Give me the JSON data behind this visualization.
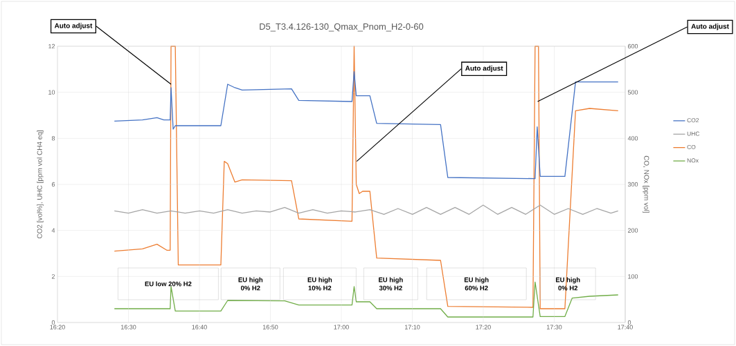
{
  "chart_data": {
    "type": "line",
    "title": "D5_T3.4.126-130_Qmax_Pnom_H2-0-60",
    "ylabel": "CO2  [vol%],  UHC  [ppm vol CH4 eq]",
    "y2label": "CO,  NOx  [ppm vol]",
    "xlim": [
      16.3333,
      17.6667
    ],
    "xticks": [
      {
        "value": 16.3333,
        "label": "16:20"
      },
      {
        "value": 16.5,
        "label": "16:30"
      },
      {
        "value": 16.6667,
        "label": "16:40"
      },
      {
        "value": 16.8333,
        "label": "16:50"
      },
      {
        "value": 17.0,
        "label": "17:00"
      },
      {
        "value": 17.1667,
        "label": "17:10"
      },
      {
        "value": 17.3333,
        "label": "17:20"
      },
      {
        "value": 17.5,
        "label": "17:30"
      },
      {
        "value": 17.6667,
        "label": "17:40"
      }
    ],
    "ylim": [
      0,
      12
    ],
    "yticks": [
      0,
      2,
      4,
      6,
      8,
      10,
      12
    ],
    "y2lim": [
      0,
      600
    ],
    "y2ticks": [
      0,
      100,
      200,
      300,
      400,
      500,
      600
    ],
    "grid": true,
    "legend": "right",
    "marker": "none",
    "series": [
      {
        "name": "CO2",
        "color": "#4472c4",
        "x": [
          16.467,
          16.533,
          16.567,
          16.583,
          16.598,
          16.6,
          16.605,
          16.61,
          16.717,
          16.733,
          16.75,
          16.767,
          16.883,
          16.9,
          17.025,
          17.03,
          17.035,
          17.067,
          17.083,
          17.233,
          17.25,
          17.455,
          17.46,
          17.467,
          17.525,
          17.55,
          17.65
        ],
        "values": [
          8.75,
          8.8,
          8.9,
          8.8,
          8.8,
          10.2,
          8.4,
          8.55,
          8.55,
          10.35,
          10.2,
          10.1,
          10.15,
          9.65,
          9.6,
          10.9,
          9.85,
          9.85,
          8.65,
          8.6,
          6.3,
          6.25,
          8.5,
          6.35,
          6.35,
          10.45,
          10.45
        ]
      },
      {
        "name": "UHC",
        "color": "#a5a5a5",
        "x": [
          16.467,
          16.5,
          16.533,
          16.567,
          16.6,
          16.633,
          16.667,
          16.7,
          16.733,
          16.767,
          16.8,
          16.833,
          16.867,
          16.9,
          16.933,
          16.967,
          17.0,
          17.033,
          17.067,
          17.1,
          17.133,
          17.167,
          17.2,
          17.233,
          17.267,
          17.3,
          17.333,
          17.367,
          17.4,
          17.433,
          17.467,
          17.5,
          17.533,
          17.567,
          17.6,
          17.633,
          17.65
        ],
        "values": [
          4.85,
          4.75,
          4.9,
          4.75,
          4.85,
          4.75,
          4.85,
          4.75,
          4.9,
          4.75,
          4.85,
          4.8,
          5.0,
          4.75,
          4.9,
          4.75,
          4.85,
          4.8,
          4.9,
          4.7,
          4.95,
          4.7,
          5.0,
          4.7,
          5.0,
          4.7,
          5.1,
          4.7,
          5.0,
          4.7,
          5.1,
          4.7,
          4.95,
          4.7,
          4.95,
          4.75,
          4.85
        ]
      },
      {
        "name": "CO",
        "color": "#ed7d31",
        "axis": "y2",
        "x": [
          16.467,
          16.533,
          16.567,
          16.59,
          16.598,
          16.6,
          16.61,
          16.617,
          16.625,
          16.717,
          16.725,
          16.733,
          16.75,
          16.767,
          16.883,
          16.9,
          17.025,
          17.03,
          17.035,
          17.042,
          17.05,
          17.067,
          17.083,
          17.233,
          17.25,
          17.45,
          17.455,
          17.463,
          17.467,
          17.525,
          17.55,
          17.583,
          17.65
        ],
        "values": [
          155,
          160,
          170,
          157,
          157,
          600,
          600,
          125,
          125,
          125,
          350,
          345,
          305,
          310,
          308,
          225,
          220,
          600,
          300,
          280,
          285,
          285,
          140,
          135,
          35,
          33,
          600,
          600,
          30,
          30,
          460,
          465,
          460
        ]
      },
      {
        "name": "NOx",
        "color": "#70ad47",
        "axis": "y2",
        "x": [
          16.467,
          16.598,
          16.6,
          16.61,
          16.717,
          16.733,
          16.867,
          16.9,
          17.025,
          17.03,
          17.035,
          17.067,
          17.083,
          17.233,
          17.25,
          17.45,
          17.455,
          17.467,
          17.525,
          17.542,
          17.583,
          17.65
        ],
        "values": [
          30,
          30,
          78,
          25,
          25,
          48,
          47,
          38,
          38,
          78,
          45,
          45,
          30,
          30,
          12,
          12,
          88,
          13,
          13,
          53,
          57,
          60
        ]
      }
    ],
    "annotations": [
      {
        "text": "Auto adjust",
        "x": 16.6,
        "y": 10.35
      },
      {
        "text": "Auto adjust",
        "x": 17.036,
        "y": 7.0
      },
      {
        "text": "Auto adjust",
        "x": 17.461,
        "y": 9.6
      },
      "EU low 20% H2",
      "EU high 0% H2",
      "EU high 10% H2",
      "EU high 30% H2",
      "EU high 60% H2",
      "EU high 0% H2"
    ]
  }
}
